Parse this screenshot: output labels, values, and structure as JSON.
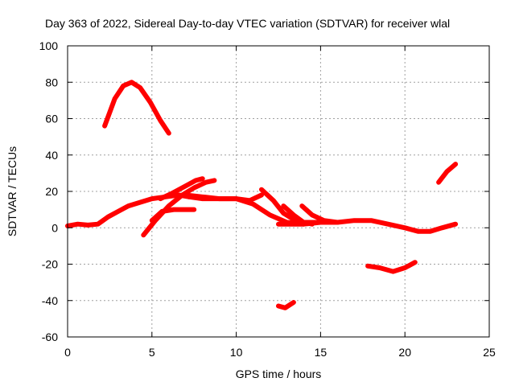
{
  "chart_data": {
    "type": "line",
    "title": "Day 363 of 2022, Sidereal Day-to-day VTEC variation (SDTVAR) for receiver wlal",
    "xlabel": "GPS time / hours",
    "ylabel": "SDTVAR / TECUs",
    "xlim": [
      0,
      25
    ],
    "ylim": [
      -60,
      100
    ],
    "xticks": [
      "0",
      "5",
      "10",
      "15",
      "20",
      "25"
    ],
    "yticks": [
      "-60",
      "-40",
      "-20",
      "0",
      "20",
      "40",
      "60",
      "80",
      "100"
    ],
    "grid": true,
    "color": "#ff0000",
    "series": [
      {
        "name": "arc-high",
        "x": [
          2.2,
          2.8,
          3.3,
          3.8,
          4.3,
          4.9,
          5.5,
          6.0
        ],
        "y": [
          56,
          71,
          78,
          80,
          77,
          69,
          59,
          52
        ]
      },
      {
        "name": "arc-baseline-early",
        "x": [
          0,
          0.6,
          1.2,
          1.8,
          2.4,
          3.0,
          3.6,
          4.3,
          5.0,
          5.8,
          6.6,
          7.2
        ],
        "y": [
          1,
          2,
          1.5,
          2,
          6,
          9,
          12,
          14,
          16,
          17,
          18,
          17
        ]
      },
      {
        "name": "arc-rise-a",
        "x": [
          4.5,
          5.2,
          6.0,
          6.8,
          7.5,
          8.2,
          8.7
        ],
        "y": [
          -4,
          4,
          12,
          18,
          22,
          25,
          26
        ]
      },
      {
        "name": "arc-rise-b",
        "x": [
          5.0,
          5.6,
          6.3,
          7.0,
          7.5
        ],
        "y": [
          4,
          9,
          10,
          10,
          10
        ]
      },
      {
        "name": "arc-rise-c",
        "x": [
          5.5,
          6.2,
          7.0,
          7.6,
          8.0
        ],
        "y": [
          16,
          19,
          23,
          26,
          27
        ]
      },
      {
        "name": "arc-plateau",
        "x": [
          7.2,
          8.0,
          9.0,
          10.0,
          10.8,
          11.5
        ],
        "y": [
          17,
          16,
          16,
          16,
          15,
          18
        ]
      },
      {
        "name": "arc-descend-a",
        "x": [
          7.0,
          8.0,
          9.0,
          10.0,
          11.0,
          12.0,
          13.0,
          14.0
        ],
        "y": [
          18,
          17,
          16,
          16,
          13,
          7,
          3,
          2
        ]
      },
      {
        "name": "arc-descend-b",
        "x": [
          11.5,
          12.2,
          12.8,
          13.5,
          14.5
        ],
        "y": [
          21,
          15,
          8,
          4,
          2
        ]
      },
      {
        "name": "arc-descend-c",
        "x": [
          12.8,
          13.4,
          14.0,
          14.8
        ],
        "y": [
          12,
          7,
          3,
          3
        ]
      },
      {
        "name": "arc-descend-d",
        "x": [
          13.9,
          14.5,
          15.2,
          16.0
        ],
        "y": [
          12,
          7,
          4,
          3
        ]
      },
      {
        "name": "arc-baseline-late",
        "x": [
          12.5,
          14.0,
          15.0,
          16.0,
          17.0,
          18.0,
          19.0,
          20.0,
          20.8,
          21.5,
          22.2,
          23.0
        ],
        "y": [
          2,
          2,
          3,
          3,
          4,
          4,
          2,
          0,
          -2,
          -2,
          0,
          2
        ]
      },
      {
        "name": "arc-neg-a",
        "x": [
          17.8,
          18.5,
          19.3,
          20.0,
          20.6
        ],
        "y": [
          -21,
          -22,
          -24,
          -22,
          -19
        ]
      },
      {
        "name": "arc-neg-b",
        "x": [
          12.5,
          12.9,
          13.4
        ],
        "y": [
          -43,
          -44,
          -41
        ]
      },
      {
        "name": "arc-late-rise",
        "x": [
          22.0,
          22.5,
          23.0
        ],
        "y": [
          25,
          31,
          35
        ]
      }
    ]
  }
}
